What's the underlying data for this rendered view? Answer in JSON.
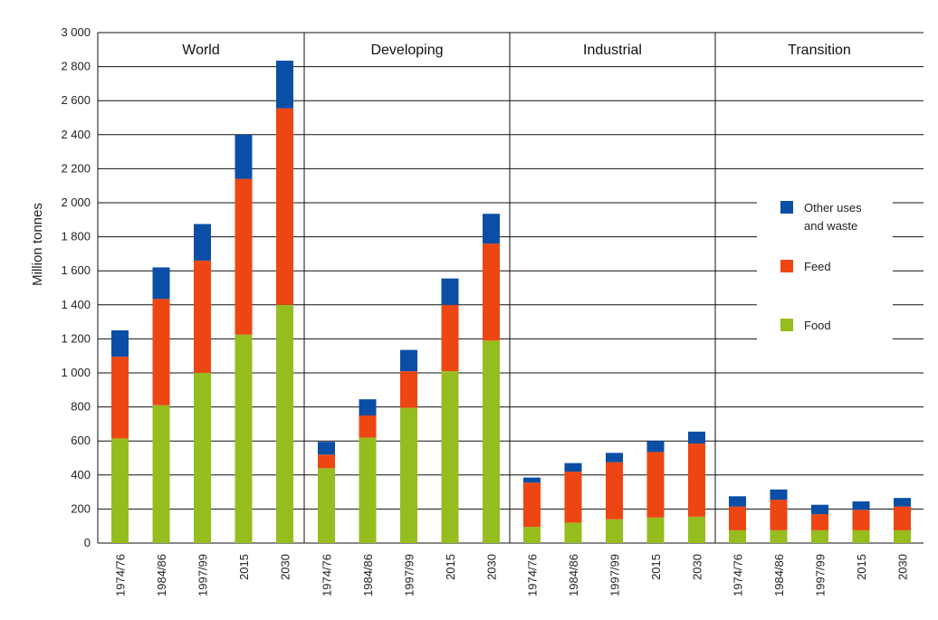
{
  "chart_data": {
    "type": "bar",
    "stacked": true,
    "ylabel": "Million tonnes",
    "ylim": [
      0,
      3000
    ],
    "yticks": [
      0,
      200,
      400,
      600,
      800,
      1000,
      1200,
      1400,
      1600,
      1800,
      2000,
      2200,
      2400,
      2600,
      2800,
      3000
    ],
    "ytick_labels": [
      "0",
      "200",
      "400",
      "600",
      "800",
      "1 000",
      "1 200",
      "1 400",
      "1 600",
      "1 800",
      "2 000",
      "2 200",
      "2 400",
      "2 600",
      "2 800",
      "3 000"
    ],
    "grid": true,
    "legend_position": "right",
    "categories": [
      "1974/76",
      "1984/86",
      "1997/99",
      "2015",
      "2030"
    ],
    "series_order": [
      "Food",
      "Feed",
      "Other uses and waste"
    ],
    "series_colors": {
      "Food": "#96bd1e",
      "Feed": "#ee4612",
      "Other uses and waste": "#0a4ea6"
    },
    "legend": [
      {
        "name": "Other uses and waste",
        "lines": [
          "Other uses",
          "and waste"
        ],
        "color": "#0a4ea6"
      },
      {
        "name": "Feed",
        "lines": [
          "Feed"
        ],
        "color": "#ee4612"
      },
      {
        "name": "Food",
        "lines": [
          "Food"
        ],
        "color": "#96bd1e"
      }
    ],
    "panels": [
      {
        "title": "World",
        "series": [
          {
            "name": "Food",
            "values": [
              615,
              810,
              1000,
              1225,
              1400
            ]
          },
          {
            "name": "Feed",
            "values": [
              480,
              625,
              660,
              915,
              1155
            ]
          },
          {
            "name": "Other uses and waste",
            "values": [
              155,
              185,
              215,
              260,
              280
            ]
          }
        ]
      },
      {
        "title": "Developing",
        "series": [
          {
            "name": "Food",
            "values": [
              440,
              620,
              795,
              1010,
              1190
            ]
          },
          {
            "name": "Feed",
            "values": [
              80,
              130,
              215,
              390,
              570
            ]
          },
          {
            "name": "Other uses and waste",
            "values": [
              75,
              95,
              125,
              155,
              175
            ]
          }
        ]
      },
      {
        "title": "Industrial",
        "series": [
          {
            "name": "Food",
            "values": [
              95,
              120,
              140,
              150,
              155
            ]
          },
          {
            "name": "Feed",
            "values": [
              260,
              300,
              335,
              385,
              430
            ]
          },
          {
            "name": "Other uses and waste",
            "values": [
              30,
              50,
              55,
              65,
              70
            ]
          }
        ]
      },
      {
        "title": "Transition",
        "series": [
          {
            "name": "Food",
            "values": [
              75,
              75,
              75,
              75,
              75
            ]
          },
          {
            "name": "Feed",
            "values": [
              140,
              180,
              95,
              120,
              140
            ]
          },
          {
            "name": "Other uses and waste",
            "values": [
              60,
              60,
              55,
              50,
              50
            ]
          }
        ]
      }
    ]
  }
}
